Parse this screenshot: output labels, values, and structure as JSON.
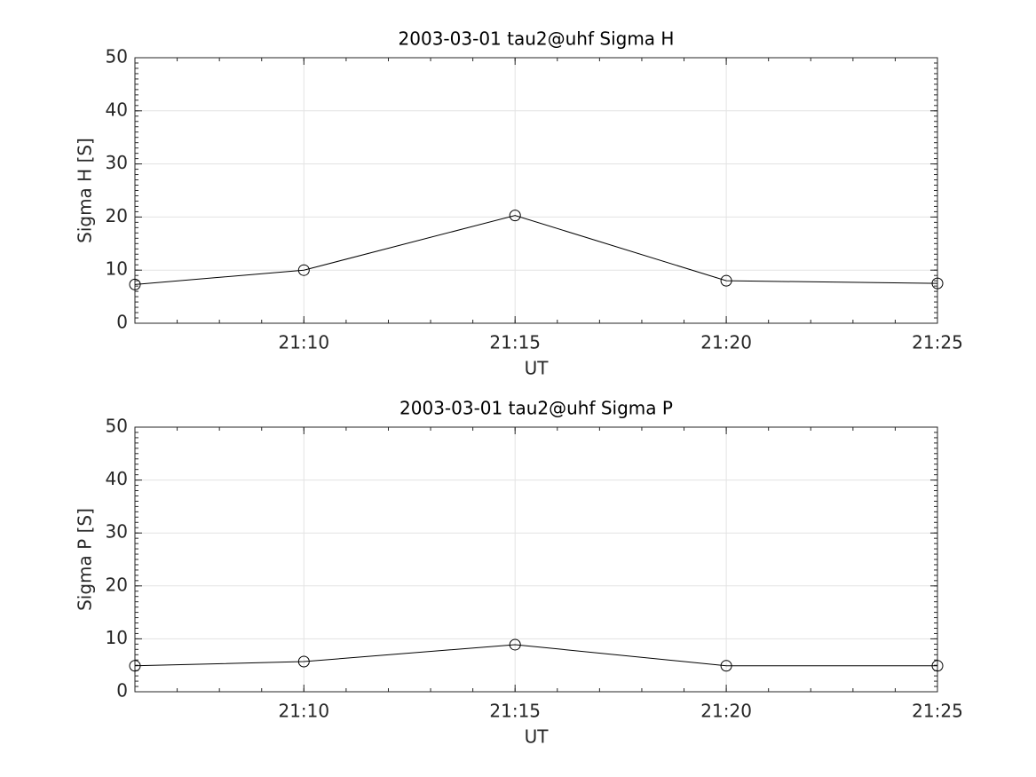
{
  "chart_data": [
    {
      "type": "line",
      "title": "2003-03-01  tau2@uhf Sigma H",
      "xlabel": "UT",
      "ylabel": "Sigma H [S]",
      "x": [
        "21:06",
        "21:10",
        "21:15",
        "21:20",
        "21:25"
      ],
      "series": [
        {
          "color": "#000000",
          "values": [
            7.3,
            10,
            20.3,
            8,
            7.5
          ]
        }
      ],
      "xlim": [
        "21:06",
        "21:25"
      ],
      "xticks": [
        "21:10",
        "21:15",
        "21:20",
        "21:25"
      ],
      "ylim": [
        0,
        50
      ],
      "yticks": [
        0,
        10,
        20,
        30,
        40,
        50
      ],
      "grid": true
    },
    {
      "type": "line",
      "title": "2003-03-01  tau2@uhf Sigma P",
      "xlabel": "UT",
      "ylabel": "Sigma P [S]",
      "x": [
        "21:06",
        "21:10",
        "21:15",
        "21:20",
        "21:25"
      ],
      "series": [
        {
          "color": "#000000",
          "values": [
            4.9,
            5.7,
            8.9,
            4.9,
            4.9
          ]
        }
      ],
      "xlim": [
        "21:06",
        "21:25"
      ],
      "xticks": [
        "21:10",
        "21:15",
        "21:20",
        "21:25"
      ],
      "ylim": [
        0,
        50
      ],
      "yticks": [
        0,
        10,
        20,
        30,
        40,
        50
      ],
      "grid": true
    }
  ]
}
